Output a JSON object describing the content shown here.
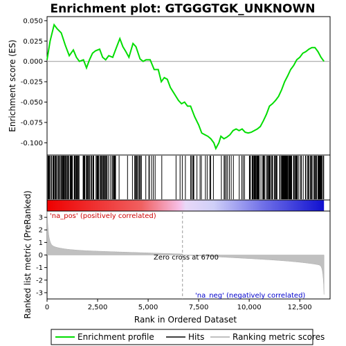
{
  "chart_data": {
    "type": "line",
    "title": "Enrichment plot: GTGGGTGK_UNKNOWN",
    "xlabel": "Rank in Ordered Dataset",
    "ylabel_top": "Enrichment score (ES)",
    "ylabel_bottom": "Ranked list metric (PreRanked)",
    "x_range": [
      0,
      14000
    ],
    "x_ticks": [
      0,
      2500,
      5000,
      7500,
      10000,
      12500
    ],
    "x_tick_labels": [
      "0",
      "2,500",
      "5,000",
      "7,500",
      "10,000",
      "12,500"
    ],
    "es_ylim": [
      -0.115,
      0.055
    ],
    "es_ticks": [
      0.05,
      0.025,
      0.0,
      -0.025,
      -0.05,
      -0.075,
      -0.1
    ],
    "es_tick_labels": [
      "0.050",
      "0.025",
      "0.000",
      "-0.025",
      "-0.050",
      "-0.075",
      "-0.100"
    ],
    "metric_ylim": [
      -3.5,
      3.5
    ],
    "metric_ticks": [
      3,
      2,
      1,
      0,
      -1,
      -2,
      -3
    ],
    "metric_tick_labels": [
      "3",
      "2",
      "1",
      "0",
      "-1",
      "-2",
      "-3"
    ],
    "max_rank": 13700,
    "zero_cross": 6700,
    "zero_cross_label": "Zero cross at 6700",
    "pos_label": "'na_pos' (positively correlated)",
    "neg_label": "'na_neg' (negatively correlated)",
    "colors": {
      "es_line": "#00dd00",
      "hits": "#000000",
      "metric": "#c0c0c0",
      "pos_label": "#cc0000",
      "neg_label": "#0000cc",
      "zero_line": "#999999"
    },
    "es_profile": {
      "x": [
        0,
        150,
        350,
        500,
        700,
        900,
        1100,
        1300,
        1450,
        1600,
        1800,
        1950,
        2100,
        2250,
        2400,
        2600,
        2750,
        2900,
        3050,
        3250,
        3400,
        3600,
        3750,
        3900,
        4050,
        4250,
        4400,
        4600,
        4750,
        4900,
        5100,
        5300,
        5500,
        5650,
        5800,
        5950,
        6100,
        6300,
        6500,
        6650,
        6800,
        6950,
        7100,
        7300,
        7500,
        7650,
        7800,
        7950,
        8100,
        8250,
        8350,
        8500,
        8600,
        8750,
        8900,
        9050,
        9200,
        9350,
        9500,
        9650,
        9800,
        9950,
        10100,
        10250,
        10400,
        10550,
        10700,
        10850,
        11000,
        11150,
        11300,
        11450,
        11600,
        11750,
        11900,
        12050,
        12200,
        12350,
        12500,
        12650,
        12800,
        12950,
        13100,
        13250,
        13400,
        13550,
        13700
      ],
      "y": [
        0.002,
        0.025,
        0.045,
        0.04,
        0.035,
        0.02,
        0.007,
        0.014,
        0.005,
        0.0,
        0.002,
        -0.008,
        0.002,
        0.01,
        0.013,
        0.015,
        0.005,
        0.002,
        0.007,
        0.005,
        0.015,
        0.028,
        0.018,
        0.012,
        0.005,
        0.022,
        0.018,
        0.003,
        0.0,
        0.002,
        0.002,
        -0.01,
        -0.01,
        -0.025,
        -0.02,
        -0.022,
        -0.032,
        -0.04,
        -0.048,
        -0.052,
        -0.05,
        -0.055,
        -0.055,
        -0.068,
        -0.078,
        -0.088,
        -0.09,
        -0.092,
        -0.095,
        -0.1,
        -0.107,
        -0.1,
        -0.092,
        -0.095,
        -0.093,
        -0.09,
        -0.085,
        -0.083,
        -0.085,
        -0.083,
        -0.087,
        -0.088,
        -0.087,
        -0.085,
        -0.083,
        -0.08,
        -0.073,
        -0.065,
        -0.055,
        -0.052,
        -0.048,
        -0.043,
        -0.035,
        -0.025,
        -0.018,
        -0.01,
        -0.005,
        0.002,
        0.005,
        0.01,
        0.012,
        0.015,
        0.017,
        0.017,
        0.012,
        0.005,
        0.0
      ]
    }
  },
  "legend": {
    "items": [
      {
        "label": "Enrichment profile",
        "color": "#00dd00"
      },
      {
        "label": "Hits",
        "color": "#000000"
      },
      {
        "label": "Ranking metric scores",
        "color": "#c0c0c0"
      }
    ]
  }
}
